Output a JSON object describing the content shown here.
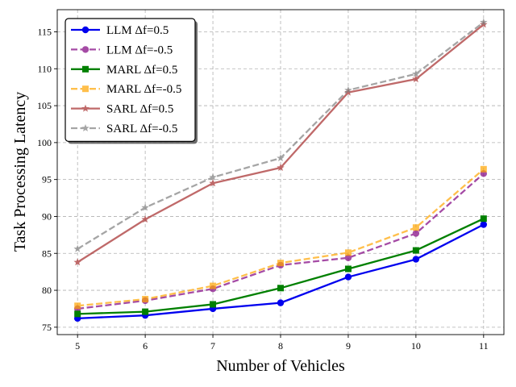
{
  "chart_data": {
    "type": "line",
    "title": "",
    "xlabel": "Number of Vehicles",
    "ylabel": "Task Processing Latency",
    "x": [
      5,
      6,
      7,
      8,
      9,
      10,
      11
    ],
    "xlim": [
      4.7,
      11.3
    ],
    "ylim": [
      74.0,
      118.0
    ],
    "xticks": [
      5,
      6,
      7,
      8,
      9,
      10,
      11
    ],
    "yticks": [
      75,
      80,
      85,
      90,
      95,
      100,
      105,
      110,
      115
    ],
    "grid": true,
    "legend_position": "upper-left",
    "series": [
      {
        "name": "LLM Δf=0.5",
        "color": "#0000ee",
        "dash": "solid",
        "marker": "circle",
        "alpha": 1.0,
        "values": [
          76.2,
          76.6,
          77.5,
          78.3,
          81.8,
          84.2,
          88.9
        ]
      },
      {
        "name": "LLM Δf=-0.5",
        "color": "#800080",
        "dash": "dashed",
        "marker": "circle",
        "alpha": 0.7,
        "values": [
          77.5,
          78.6,
          80.2,
          83.4,
          84.4,
          87.7,
          95.8
        ]
      },
      {
        "name": "MARL Δf=0.5",
        "color": "#008000",
        "dash": "solid",
        "marker": "square",
        "alpha": 1.0,
        "values": [
          76.8,
          77.1,
          78.1,
          80.3,
          82.9,
          85.4,
          89.7
        ]
      },
      {
        "name": "MARL Δf=-0.5",
        "color": "#ffa500",
        "dash": "dashed",
        "marker": "square",
        "alpha": 0.7,
        "values": [
          77.9,
          78.8,
          80.6,
          83.7,
          85.1,
          88.5,
          96.4
        ]
      },
      {
        "name": "SARL Δf=0.5",
        "color": "#a52a2a",
        "dash": "solid",
        "marker": "star",
        "alpha": 0.7,
        "values": [
          83.8,
          89.6,
          94.5,
          96.6,
          106.8,
          108.6,
          116.0
        ]
      },
      {
        "name": "SARL Δf=-0.5",
        "color": "#808080",
        "dash": "dashed",
        "marker": "star",
        "alpha": 0.7,
        "values": [
          85.6,
          91.2,
          95.3,
          97.9,
          107.1,
          109.3,
          116.3
        ]
      }
    ]
  }
}
